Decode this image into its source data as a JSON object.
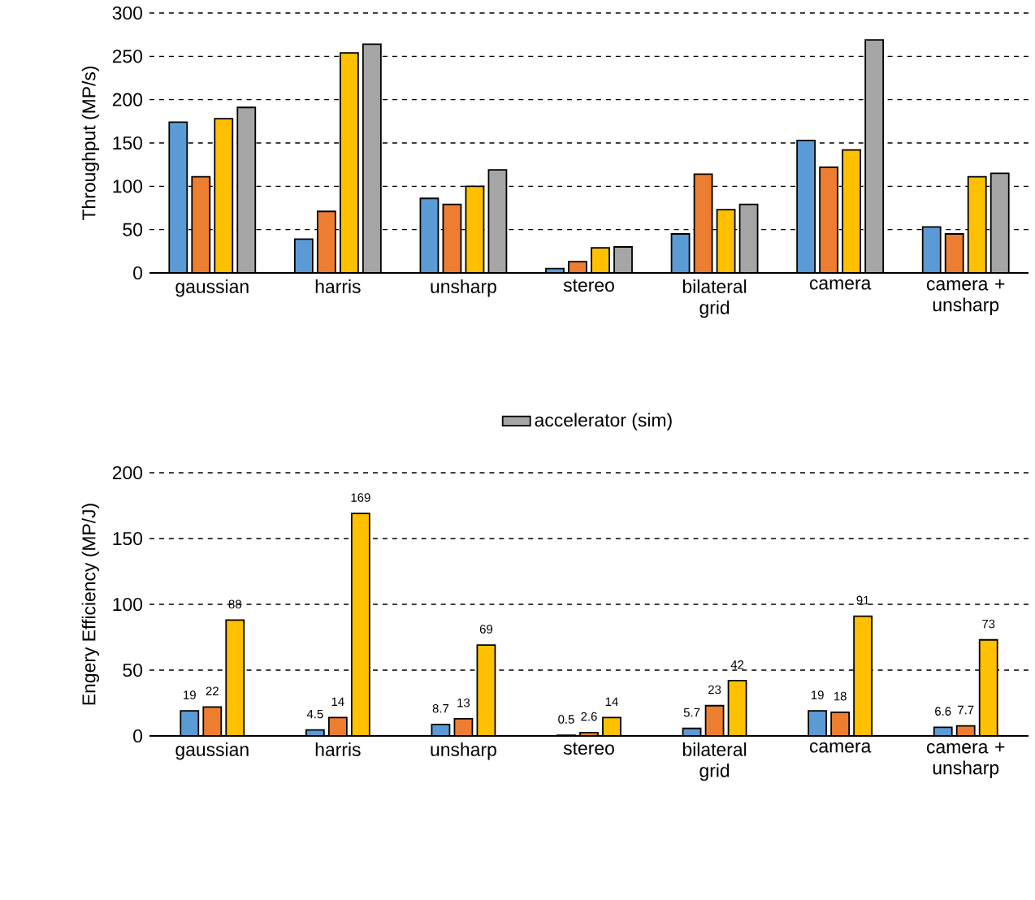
{
  "chart_data": [
    {
      "type": "bar",
      "ylabel": "Throughput (MP/s)",
      "categories": [
        "gaussian",
        "harris",
        "unsharp",
        "stereo",
        "bilateral grid",
        "camera",
        "camera + unsharp"
      ],
      "series": [
        {
          "color": "#5b9bd5",
          "values": [
            174,
            39,
            86,
            5,
            45,
            153,
            53
          ]
        },
        {
          "color": "#ed7d31",
          "values": [
            111,
            71,
            79,
            13,
            114,
            122,
            45
          ]
        },
        {
          "color": "#ffc000",
          "values": [
            178,
            254,
            100,
            29,
            73,
            142,
            111
          ]
        },
        {
          "name": "accelerator (sim)",
          "color": "#a5a5a5",
          "values": [
            191,
            264,
            119,
            30,
            79,
            269,
            115
          ]
        }
      ],
      "ylim": [
        0,
        300
      ],
      "yticks": [
        0,
        50,
        100,
        150,
        200,
        250,
        300
      ],
      "grid": "y",
      "legend": "bottom"
    },
    {
      "type": "bar",
      "ylabel": "Engery Efficiency (MP/J)",
      "categories": [
        "gaussian",
        "harris",
        "unsharp",
        "stereo",
        "bilateral grid",
        "camera",
        "camera + unsharp"
      ],
      "series": [
        {
          "color": "#5b9bd5",
          "values": [
            19,
            4.5,
            8.7,
            0.5,
            5.7,
            19,
            6.6
          ]
        },
        {
          "color": "#ed7d31",
          "values": [
            22,
            14,
            13,
            2.6,
            23,
            18,
            7.7
          ]
        },
        {
          "color": "#ffc000",
          "values": [
            88,
            169,
            69,
            14,
            42,
            91,
            73
          ]
        }
      ],
      "ylim": [
        0,
        200
      ],
      "yticks": [
        0,
        50,
        100,
        150,
        200
      ],
      "grid": "y",
      "data_labels": true
    }
  ]
}
